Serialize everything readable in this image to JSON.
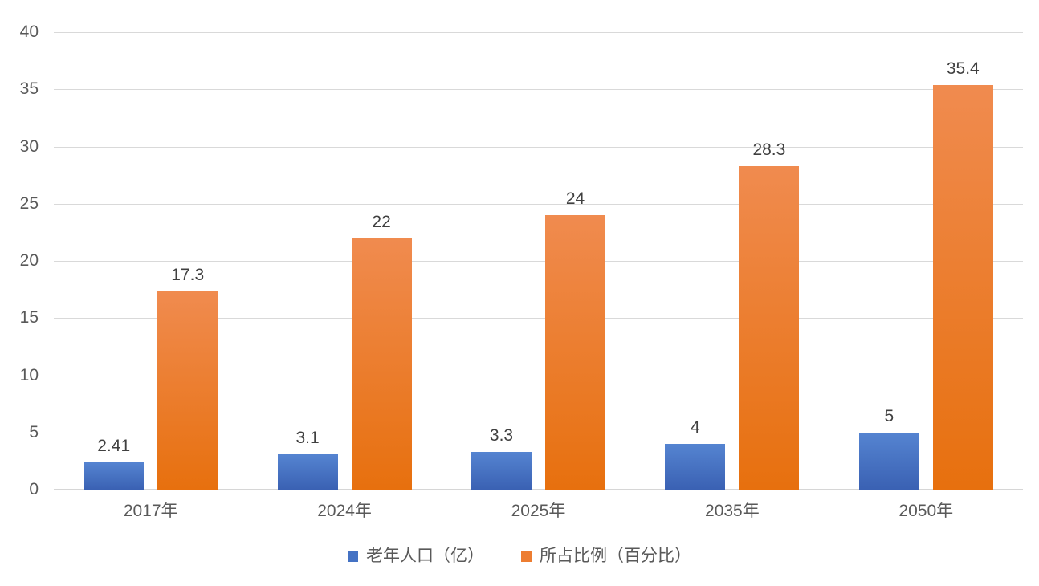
{
  "chart_data": {
    "type": "bar",
    "title": "",
    "xlabel": "",
    "ylabel": "",
    "categories": [
      "2017年",
      "2024年",
      "2025年",
      "2035年",
      "2050年"
    ],
    "series": [
      {
        "name": "老年人口（亿）",
        "values": [
          2.41,
          3.1,
          3.3,
          4,
          5
        ],
        "labels": [
          "2.41",
          "3.1",
          "3.3",
          "4",
          "5"
        ],
        "swatch_color": "#4472c4",
        "gradient_top": "#5584d1",
        "gradient_bottom": "#3a61b3"
      },
      {
        "name": "所占比例（百分比）",
        "values": [
          17.3,
          22,
          24,
          28.3,
          35.4
        ],
        "labels": [
          "17.3",
          "22",
          "24",
          "28.3",
          "35.4"
        ],
        "swatch_color": "#ed7d31",
        "gradient_top": "#f08b4f",
        "gradient_bottom": "#e7700e"
      }
    ],
    "ylim": [
      0,
      40
    ],
    "yticks": [
      0,
      5,
      10,
      15,
      20,
      25,
      30,
      35,
      40
    ],
    "grid": true,
    "data_labels": true,
    "legend_position": "bottom"
  },
  "colors": {
    "background": "#ffffff",
    "gridline": "#d9d9d9",
    "axis_line": "#d6d6d6",
    "tick_label": "#595959",
    "data_label": "#404040",
    "legend_label": "#595959"
  }
}
